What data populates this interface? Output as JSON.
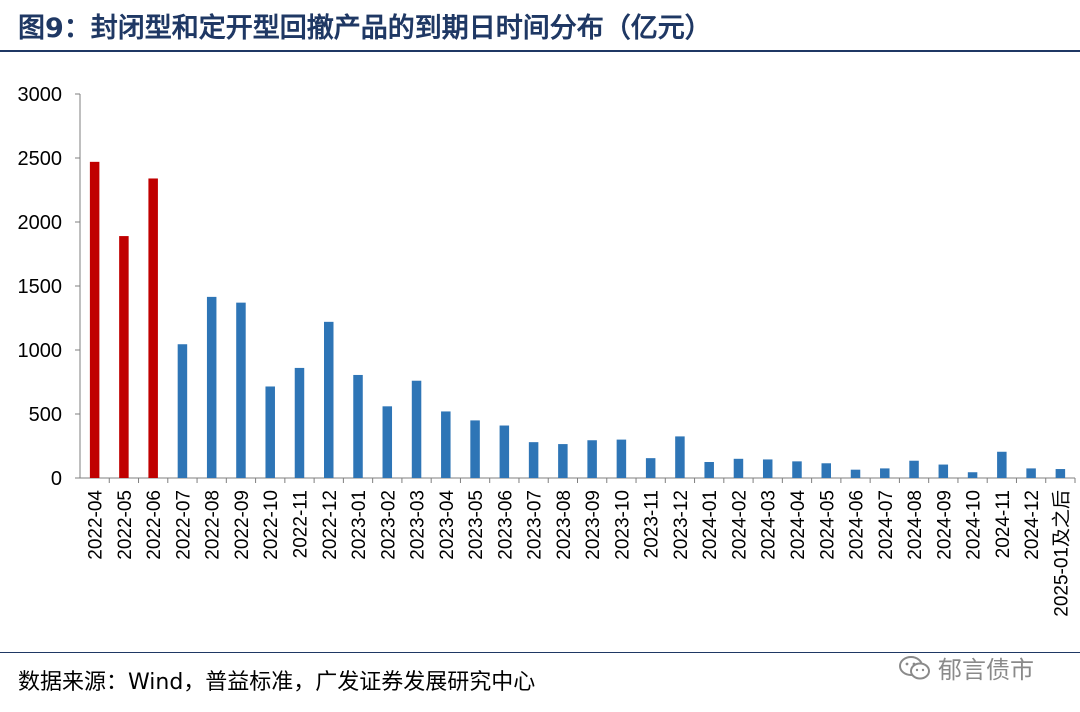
{
  "title": "图9：封闭型和定开型回撤产品的到期日时间分布（亿元）",
  "source": "数据来源：Wind，普益标准，广发证券发展研究中心",
  "watermark": "郁言债市",
  "colors": {
    "highlight": "#c00000",
    "normal": "#2e75b6",
    "title": "#1f3864"
  },
  "chart_data": {
    "type": "bar",
    "categories": [
      "2022-04",
      "2022-05",
      "2022-06",
      "2022-07",
      "2022-08",
      "2022-09",
      "2022-10",
      "2022-11",
      "2022-12",
      "2023-01",
      "2023-02",
      "2023-03",
      "2023-04",
      "2023-05",
      "2023-06",
      "2023-07",
      "2023-08",
      "2023-09",
      "2023-10",
      "2023-11",
      "2023-12",
      "2024-01",
      "2024-02",
      "2024-03",
      "2024-04",
      "2024-05",
      "2024-06",
      "2024-07",
      "2024-08",
      "2024-09",
      "2024-10",
      "2024-11",
      "2024-12",
      "2025-01及之后"
    ],
    "values": [
      2470,
      1890,
      2340,
      1045,
      1415,
      1370,
      715,
      860,
      1220,
      805,
      560,
      760,
      520,
      450,
      410,
      280,
      265,
      295,
      300,
      155,
      325,
      125,
      150,
      145,
      130,
      115,
      65,
      75,
      135,
      105,
      45,
      205,
      75,
      70
    ],
    "highlight_count": 3,
    "yticks": [
      0,
      500,
      1000,
      1500,
      2000,
      2500,
      3000
    ],
    "ylim": [
      0,
      3000
    ]
  }
}
